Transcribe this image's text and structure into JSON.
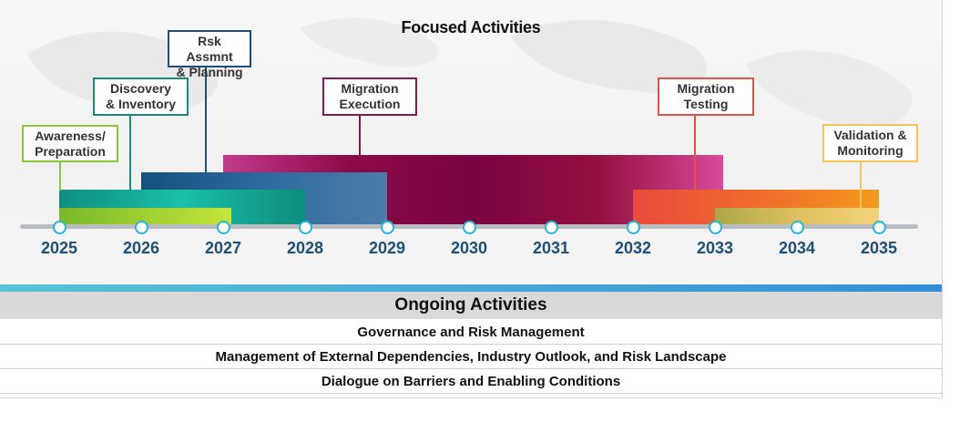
{
  "focused": {
    "title": "Focused Activities",
    "years": [
      "2025",
      "2026",
      "2027",
      "2028",
      "2029",
      "2030",
      "2031",
      "2032",
      "2033",
      "2034",
      "2035"
    ],
    "phases": [
      {
        "id": "awareness",
        "label_1": "Awareness/",
        "label_2": "Preparation",
        "color": "#8cc63f",
        "start": 2025,
        "end": 2027.1,
        "fill": "linear-gradient(90deg,#7ab829,#c4e63a)"
      },
      {
        "id": "discovery",
        "label_1": "Discovery",
        "label_2": "& Inventory",
        "color": "#1b8a7a",
        "start": 2025,
        "end": 2028,
        "fill": "linear-gradient(90deg,#0d8f7f,#1bbfa7,#0c8c7a)"
      },
      {
        "id": "risk",
        "label_1": "Rsk Assmnt",
        "label_2": "& Planning",
        "color": "#1f4e79",
        "start": 2026,
        "end": 2029,
        "fill": "linear-gradient(90deg,#15507e,#2d6aa0,#4c7ca8)"
      },
      {
        "id": "migration_execution",
        "label_1": "Migration",
        "label_2": "Execution",
        "color": "#7b1d4e",
        "start": 2027,
        "end": 2033.1,
        "fill": "linear-gradient(90deg,#c33a8c,#8b0b47,#7a0442,#93103f,#d94a9a)"
      },
      {
        "id": "migration_testing",
        "label_1": "Migration",
        "label_2": "Testing",
        "color": "#e0524a",
        "start": 2032,
        "end": 2035,
        "fill": "linear-gradient(90deg,#e94b3c,#f06a2c,#f39a1c)"
      },
      {
        "id": "validation",
        "label_1": "Validation &",
        "label_2": "Monitoring",
        "color": "#f2c45a",
        "start": 2033,
        "end": 2035,
        "fill": "linear-gradient(90deg,#a8a84a,#e0c060,#f3d27a)"
      }
    ]
  },
  "ongoing": {
    "title": "Ongoing Activities",
    "items": [
      "Governance and Risk Management",
      "Management of External Dependencies, Industry Outlook, and Risk Landscape",
      "Dialogue on Barriers and Enabling Conditions"
    ]
  }
}
